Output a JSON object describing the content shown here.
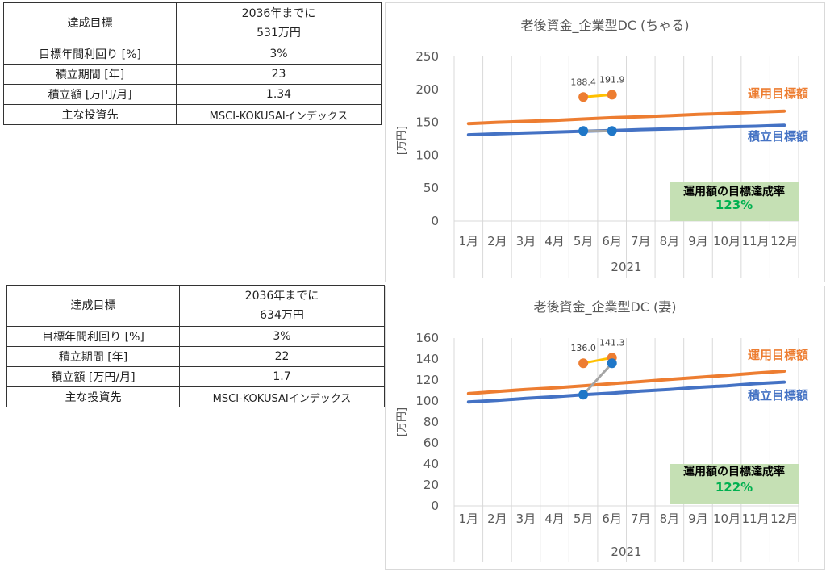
{
  "tables": [
    {
      "rows": [
        {
          "label": "達成目標",
          "value_lines": [
            "2036年までに",
            "531万円"
          ]
        },
        {
          "label": "目標年間利回り [%]",
          "value": "3%"
        },
        {
          "label": "積立期間 [年]",
          "value": "23"
        },
        {
          "label": "積立額 [万円/月]",
          "value": "1.34"
        },
        {
          "label": "主な投資先",
          "value": "MSCI-KOKUSAIインデックス"
        }
      ]
    },
    {
      "rows": [
        {
          "label": "達成目標",
          "value_lines": [
            "2036年までに",
            "634万円"
          ]
        },
        {
          "label": "目標年間利回り [%]",
          "value": "3%"
        },
        {
          "label": "積立期間 [年]",
          "value": "22"
        },
        {
          "label": "積立額 [万円/月]",
          "value": "1.7"
        },
        {
          "label": "主な投資先",
          "value": "MSCI-KOKUSAIインデックス"
        }
      ]
    }
  ],
  "chart_data": [
    {
      "type": "line",
      "title": "老後資金_企業型DC (ちゃる)",
      "ylabel": "[万円]",
      "xlabel": "2021",
      "ylim": [
        0,
        250
      ],
      "yticks": [
        0,
        50,
        100,
        150,
        200,
        250
      ],
      "grid": "vertical",
      "categories": [
        "1月",
        "2月",
        "3月",
        "4月",
        "5月",
        "6月",
        "7月",
        "8月",
        "9月",
        "10月",
        "11月",
        "12月"
      ],
      "series": [
        {
          "name": "運用目標額",
          "color": "#ed7d31",
          "values": [
            148,
            150,
            151.5,
            153,
            155,
            157,
            158.5,
            160,
            162,
            163.5,
            165.5,
            167
          ],
          "markers": false
        },
        {
          "name": "積立目標額",
          "color": "#4472c4",
          "values": [
            131,
            132.5,
            134,
            135,
            136.5,
            137.5,
            139,
            140,
            141.5,
            143,
            144,
            145.5
          ],
          "markers": false
        },
        {
          "name": "",
          "color": "#ffc000",
          "marker_color": "#ed7d31",
          "values": [
            null,
            null,
            null,
            null,
            188.4,
            191.9,
            null,
            null,
            null,
            null,
            null,
            null
          ],
          "markers": true,
          "labels": [
            "188.4",
            "191.9"
          ]
        },
        {
          "name": "",
          "color": "#a5a5a5",
          "marker_color": "#1f77c8",
          "values": [
            null,
            null,
            null,
            null,
            137,
            137,
            null,
            null,
            null,
            null,
            null,
            null
          ],
          "markers": true
        }
      ],
      "annotation": {
        "label": "運用額の目標達成率",
        "value": "123%"
      }
    },
    {
      "type": "line",
      "title": "老後資金_企業型DC (妻)",
      "ylabel": "[万円]",
      "xlabel": "2021",
      "ylim": [
        0,
        160
      ],
      "yticks": [
        0,
        20,
        40,
        60,
        80,
        100,
        120,
        140,
        160
      ],
      "grid": "vertical",
      "categories": [
        "1月",
        "2月",
        "3月",
        "4月",
        "5月",
        "6月",
        "7月",
        "8月",
        "9月",
        "10月",
        "11月",
        "12月"
      ],
      "series": [
        {
          "name": "運用目標額",
          "color": "#ed7d31",
          "values": [
            107,
            109,
            111,
            112.5,
            114.5,
            116.5,
            118.5,
            120.5,
            122.5,
            124.5,
            126.5,
            128.5
          ],
          "markers": false
        },
        {
          "name": "積立目標額",
          "color": "#4472c4",
          "values": [
            99,
            100.5,
            102.5,
            104,
            106,
            107.5,
            109.5,
            111,
            113,
            114.5,
            116.5,
            118
          ],
          "markers": false
        },
        {
          "name": "",
          "color": "#ffc000",
          "marker_color": "#ed7d31",
          "values": [
            null,
            null,
            null,
            null,
            136.0,
            141.3,
            null,
            null,
            null,
            null,
            null,
            null
          ],
          "markers": true,
          "labels": [
            "136.0",
            "141.3"
          ]
        },
        {
          "name": "",
          "color": "#a5a5a5",
          "marker_color": "#1f77c8",
          "values": [
            null,
            null,
            null,
            null,
            106,
            136,
            null,
            null,
            null,
            null,
            null,
            null
          ],
          "markers": true
        }
      ],
      "annotation": {
        "label": "運用額の目標達成率",
        "value": "122%"
      }
    }
  ]
}
